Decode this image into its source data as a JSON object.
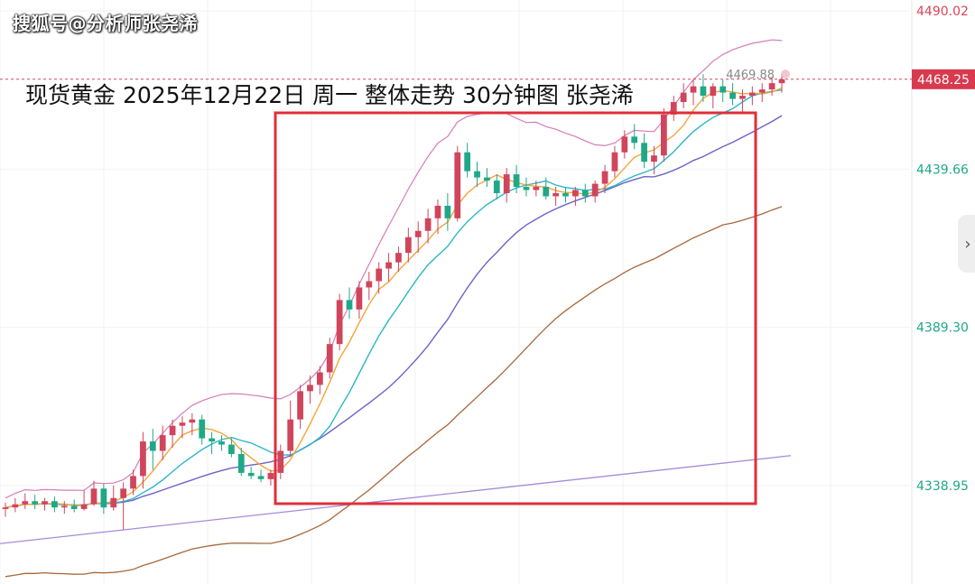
{
  "watermark": "搜狐号@分析师张尧浠",
  "chart_title": "现货黄金 2025年12月22日 周一 整体走势 30分钟图 张尧浠",
  "nav_icon": "chevron-right-icon",
  "chart_data": {
    "type": "candlestick",
    "ylim": [
      4310,
      4495
    ],
    "y_ticks": [
      {
        "label": "4490.02",
        "value": 4490.02
      },
      {
        "label": "4439.66",
        "value": 4439.66
      },
      {
        "label": "4389.30",
        "value": 4389.3
      },
      {
        "label": "4338.95",
        "value": 4338.95
      }
    ],
    "last_price": {
      "label": "4468.25",
      "value": 4468.25
    },
    "high_marker": {
      "label": "4469.88",
      "value": 4469.88
    },
    "colors": {
      "up": "#d0455c",
      "down": "#1fa888",
      "price_tag": "#d83a4e",
      "highlight_box": "#e02f3a",
      "ma_orange": "#f3a53c",
      "ma_cyan": "#2ab7c8",
      "ma_blue": "#6b63c8",
      "ma_brown": "#a8683c",
      "ma_lavender": "#a58bd8",
      "boll_upper": "#d77bb8"
    },
    "candles": [
      [
        4331.5,
        4333.5,
        4329.0,
        4332.0
      ],
      [
        4332.0,
        4335.0,
        4330.5,
        4333.0
      ],
      [
        4333.0,
        4336.5,
        4331.5,
        4334.0
      ],
      [
        4334.0,
        4336.0,
        4331.5,
        4333.0
      ],
      [
        4333.0,
        4335.0,
        4331.0,
        4334.0
      ],
      [
        4334.0,
        4335.5,
        4330.5,
        4332.0
      ],
      [
        4332.0,
        4334.0,
        4330.0,
        4332.5
      ],
      [
        4332.5,
        4334.5,
        4330.5,
        4331.5
      ],
      [
        4331.5,
        4337.5,
        4331.0,
        4333.0
      ],
      [
        4333.0,
        4340.5,
        4332.5,
        4338.0
      ],
      [
        4338.0,
        4339.5,
        4330.0,
        4332.0
      ],
      [
        4332.0,
        4339.0,
        4331.0,
        4335.0
      ],
      [
        4335.0,
        4340.0,
        4325.0,
        4338.0
      ],
      [
        4338.0,
        4344.0,
        4336.0,
        4342.0
      ],
      [
        4342.0,
        4356.0,
        4338.0,
        4353.0
      ],
      [
        4353.0,
        4357.0,
        4344.0,
        4350.0
      ],
      [
        4350.0,
        4358.0,
        4347.0,
        4355.0
      ],
      [
        4355.0,
        4360.0,
        4351.0,
        4358.0
      ],
      [
        4358.0,
        4361.0,
        4354.0,
        4359.0
      ],
      [
        4359.0,
        4362.0,
        4355.0,
        4360.0
      ],
      [
        4360.0,
        4361.5,
        4352.0,
        4354.0
      ],
      [
        4354.0,
        4356.0,
        4349.0,
        4353.0
      ],
      [
        4353.0,
        4355.0,
        4350.0,
        4352.0
      ],
      [
        4352.0,
        4354.0,
        4348.0,
        4349.0
      ],
      [
        4349.0,
        4351.0,
        4342.0,
        4343.0
      ],
      [
        4343.0,
        4345.0,
        4341.0,
        4342.0
      ],
      [
        4342.0,
        4344.0,
        4340.0,
        4341.0
      ],
      [
        4341.0,
        4344.0,
        4339.0,
        4343.0
      ],
      [
        4343.0,
        4352.0,
        4341.0,
        4350.0
      ],
      [
        4350.0,
        4366.0,
        4348.0,
        4360.0
      ],
      [
        4360.0,
        4371.0,
        4357.0,
        4369.0
      ],
      [
        4369.0,
        4374.0,
        4365.0,
        4371.0
      ],
      [
        4371.0,
        4377.0,
        4368.0,
        4375.0
      ],
      [
        4375.0,
        4386.0,
        4373.0,
        4384.0
      ],
      [
        4384.0,
        4400.0,
        4382.0,
        4398.0
      ],
      [
        4398.0,
        4402.0,
        4392.0,
        4395.0
      ],
      [
        4395.0,
        4404.0,
        4392.0,
        4402.0
      ],
      [
        4402.0,
        4407.0,
        4398.0,
        4404.0
      ],
      [
        4404.0,
        4410.0,
        4400.0,
        4408.0
      ],
      [
        4408.0,
        4413.0,
        4404.0,
        4410.0
      ],
      [
        4410.0,
        4415.0,
        4407.0,
        4413.0
      ],
      [
        4413.0,
        4421.0,
        4410.0,
        4418.0
      ],
      [
        4418.0,
        4423.0,
        4413.0,
        4420.0
      ],
      [
        4420.0,
        4427.0,
        4416.0,
        4424.0
      ],
      [
        4424.0,
        4430.0,
        4419.0,
        4428.0
      ],
      [
        4428.0,
        4432.0,
        4420.0,
        4424.0
      ],
      [
        4424.0,
        4447.0,
        4423.0,
        4445.0
      ],
      [
        4445.0,
        4448.0,
        4437.0,
        4439.0
      ],
      [
        4439.0,
        4442.0,
        4434.0,
        4437.0
      ],
      [
        4437.0,
        4440.0,
        4434.0,
        4436.0
      ],
      [
        4436.0,
        4438.0,
        4430.0,
        4432.0
      ],
      [
        4432.0,
        4440.0,
        4429.0,
        4438.0
      ],
      [
        4438.0,
        4441.0,
        4432.0,
        4434.0
      ],
      [
        4434.0,
        4437.0,
        4431.0,
        4433.0
      ],
      [
        4433.0,
        4436.0,
        4431.0,
        4434.0
      ],
      [
        4434.0,
        4437.0,
        4430.0,
        4431.0
      ],
      [
        4431.0,
        4434.0,
        4428.0,
        4432.0
      ],
      [
        4432.0,
        4434.0,
        4429.0,
        4431.0
      ],
      [
        4431.0,
        4434.0,
        4428.0,
        4433.0
      ],
      [
        4433.0,
        4435.0,
        4429.0,
        4431.0
      ],
      [
        4431.0,
        4436.0,
        4429.0,
        4435.0
      ],
      [
        4435.0,
        4441.0,
        4432.0,
        4439.0
      ],
      [
        4439.0,
        4447.0,
        4437.0,
        4445.0
      ],
      [
        4445.0,
        4452.0,
        4443.0,
        4450.0
      ],
      [
        4450.0,
        4454.0,
        4446.0,
        4448.0
      ],
      [
        4448.0,
        4451.0,
        4440.0,
        4442.0
      ],
      [
        4442.0,
        4447.0,
        4438.0,
        4444.0
      ],
      [
        4444.0,
        4459.0,
        4442.0,
        4457.0
      ],
      [
        4457.0,
        4463.0,
        4455.0,
        4461.0
      ],
      [
        4461.0,
        4467.0,
        4459.0,
        4464.0
      ],
      [
        4464.0,
        4468.0,
        4460.0,
        4466.0
      ],
      [
        4466.0,
        4469.88,
        4461.0,
        4463.0
      ],
      [
        4463.0,
        4467.0,
        4459.0,
        4466.0
      ],
      [
        4466.0,
        4468.0,
        4461.0,
        4464.0
      ],
      [
        4464.0,
        4467.0,
        4460.0,
        4462.0
      ],
      [
        4462.0,
        4465.0,
        4458.0,
        4463.0
      ],
      [
        4463.0,
        4466.0,
        4460.0,
        4464.0
      ],
      [
        4464.0,
        4467.0,
        4461.0,
        4465.0
      ],
      [
        4465.0,
        4469.0,
        4463.0,
        4467.0
      ],
      [
        4467.0,
        4469.88,
        4464.0,
        4468.25
      ]
    ]
  }
}
